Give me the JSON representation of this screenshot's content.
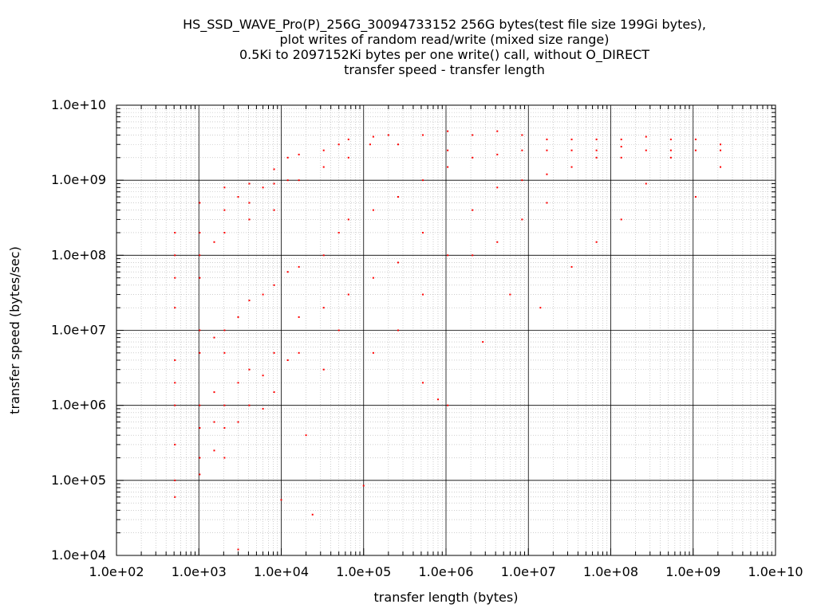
{
  "chart_data": {
    "type": "scatter",
    "title": [
      "HS_SSD_WAVE_Pro(P)_256G_30094733152 256G bytes(test file size 199Gi bytes),",
      "plot writes of random read/write (mixed size range)",
      "0.5Ki to 2097152Ki bytes per one write() call, without O_DIRECT",
      "transfer speed - transfer length"
    ],
    "xlabel": "transfer length (bytes)",
    "ylabel": "transfer speed (bytes/sec)",
    "x_scale": "log",
    "y_scale": "log",
    "xlim": [
      100,
      10000000000
    ],
    "ylim": [
      10000,
      10000000000
    ],
    "x_ticks": [
      "1.0e+02",
      "1.0e+03",
      "1.0e+04",
      "1.0e+05",
      "1.0e+06",
      "1.0e+07",
      "1.0e+08",
      "1.0e+09",
      "1.0e+10"
    ],
    "y_ticks": [
      "1.0e+04",
      "1.0e+05",
      "1.0e+06",
      "1.0e+07",
      "1.0e+08",
      "1.0e+09",
      "1.0e+10"
    ],
    "grid": "major and minor (log)",
    "marker_color": "#ff0000",
    "series": [
      {
        "points": [
          [
            512,
            200000000
          ],
          [
            512,
            100000000
          ],
          [
            512,
            50000000
          ],
          [
            512,
            20000000
          ],
          [
            512,
            4000000
          ],
          [
            512,
            2000000
          ],
          [
            512,
            1000000
          ],
          [
            512,
            300000
          ],
          [
            512,
            100000
          ],
          [
            512,
            60000
          ],
          [
            1024,
            500000000
          ],
          [
            1024,
            200000000
          ],
          [
            1024,
            100000000
          ],
          [
            1024,
            50000000
          ],
          [
            1024,
            10000000
          ],
          [
            1024,
            5000000
          ],
          [
            1024,
            1000000
          ],
          [
            1024,
            500000
          ],
          [
            1024,
            200000
          ],
          [
            1024,
            120000
          ],
          [
            1536,
            150000000
          ],
          [
            1536,
            8000000
          ],
          [
            1536,
            1500000
          ],
          [
            1536,
            600000
          ],
          [
            1536,
            250000
          ],
          [
            2048,
            800000000
          ],
          [
            2048,
            400000000
          ],
          [
            2048,
            200000000
          ],
          [
            2048,
            10000000
          ],
          [
            2048,
            5000000
          ],
          [
            2048,
            1000000
          ],
          [
            2048,
            500000
          ],
          [
            2048,
            200000
          ],
          [
            3000,
            600000000
          ],
          [
            3000,
            15000000
          ],
          [
            3000,
            2000000
          ],
          [
            3000,
            600000
          ],
          [
            3000,
            12000
          ],
          [
            4096,
            900000000
          ],
          [
            4096,
            500000000
          ],
          [
            4096,
            300000000
          ],
          [
            4096,
            25000000
          ],
          [
            4096,
            3000000
          ],
          [
            4096,
            1000000
          ],
          [
            6000,
            800000000
          ],
          [
            6000,
            30000000
          ],
          [
            6000,
            2500000
          ],
          [
            6000,
            900000
          ],
          [
            8192,
            1400000000
          ],
          [
            8192,
            900000000
          ],
          [
            8192,
            400000000
          ],
          [
            8192,
            40000000
          ],
          [
            8192,
            5000000
          ],
          [
            8192,
            1500000
          ],
          [
            10000,
            55000
          ],
          [
            12000,
            2000000000
          ],
          [
            12000,
            1000000000
          ],
          [
            12000,
            60000000
          ],
          [
            12000,
            4000000
          ],
          [
            16384,
            2200000000
          ],
          [
            16384,
            1000000000
          ],
          [
            16384,
            70000000
          ],
          [
            16384,
            5000000
          ],
          [
            16384,
            15000000
          ],
          [
            20000,
            400000
          ],
          [
            24000,
            35000
          ],
          [
            32768,
            2500000000
          ],
          [
            32768,
            1500000000
          ],
          [
            32768,
            100000000
          ],
          [
            32768,
            20000000
          ],
          [
            32768,
            3000000
          ],
          [
            50000,
            3000000000
          ],
          [
            50000,
            200000000
          ],
          [
            50000,
            10000000
          ],
          [
            65536,
            3500000000
          ],
          [
            65536,
            2000000000
          ],
          [
            65536,
            300000000
          ],
          [
            65536,
            30000000
          ],
          [
            100000,
            85000
          ],
          [
            120000,
            3000000000
          ],
          [
            131072,
            3800000000
          ],
          [
            131072,
            400000000
          ],
          [
            131072,
            50000000
          ],
          [
            131072,
            5000000
          ],
          [
            200000,
            4000000000
          ],
          [
            262144,
            3000000000
          ],
          [
            262144,
            600000000
          ],
          [
            262144,
            80000000
          ],
          [
            262144,
            10000000
          ],
          [
            524288,
            4000000000
          ],
          [
            524288,
            1000000000
          ],
          [
            524288,
            200000000
          ],
          [
            524288,
            30000000
          ],
          [
            524288,
            2000000
          ],
          [
            800000,
            1200000
          ],
          [
            1048576,
            4500000000
          ],
          [
            1048576,
            1500000000
          ],
          [
            1048576,
            2500000000
          ],
          [
            1048576,
            100000000
          ],
          [
            1048576,
            1000000
          ],
          [
            2097152,
            4000000000
          ],
          [
            2097152,
            2000000000
          ],
          [
            2097152,
            400000000
          ],
          [
            2097152,
            100000000
          ],
          [
            2800000,
            7000000
          ],
          [
            4194304,
            4500000000
          ],
          [
            4194304,
            2200000000
          ],
          [
            4194304,
            800000000
          ],
          [
            4194304,
            150000000
          ],
          [
            6000000,
            30000000
          ],
          [
            8388608,
            4000000000
          ],
          [
            8388608,
            2500000000
          ],
          [
            8388608,
            1000000000
          ],
          [
            8388608,
            300000000
          ],
          [
            14000000,
            20000000
          ],
          [
            16777216,
            3500000000
          ],
          [
            16777216,
            2500000000
          ],
          [
            16777216,
            1200000000
          ],
          [
            16777216,
            500000000
          ],
          [
            33554432,
            3500000000
          ],
          [
            33554432,
            2500000000
          ],
          [
            33554432,
            1500000000
          ],
          [
            33554432,
            70000000
          ],
          [
            67108864,
            3500000000
          ],
          [
            67108864,
            2500000000
          ],
          [
            67108864,
            2000000000
          ],
          [
            67108864,
            150000000
          ],
          [
            134217728,
            3500000000
          ],
          [
            134217728,
            2800000000
          ],
          [
            134217728,
            2000000000
          ],
          [
            134217728,
            300000000
          ],
          [
            268435456,
            3800000000
          ],
          [
            268435456,
            2500000000
          ],
          [
            268435456,
            900000000
          ],
          [
            536870912,
            3500000000
          ],
          [
            536870912,
            2500000000
          ],
          [
            536870912,
            2000000000
          ],
          [
            1073741824,
            3500000000
          ],
          [
            1073741824,
            2500000000
          ],
          [
            1073741824,
            600000000
          ],
          [
            2147483648,
            3000000000
          ],
          [
            2147483648,
            2500000000
          ],
          [
            2147483648,
            1500000000
          ]
        ]
      }
    ]
  }
}
